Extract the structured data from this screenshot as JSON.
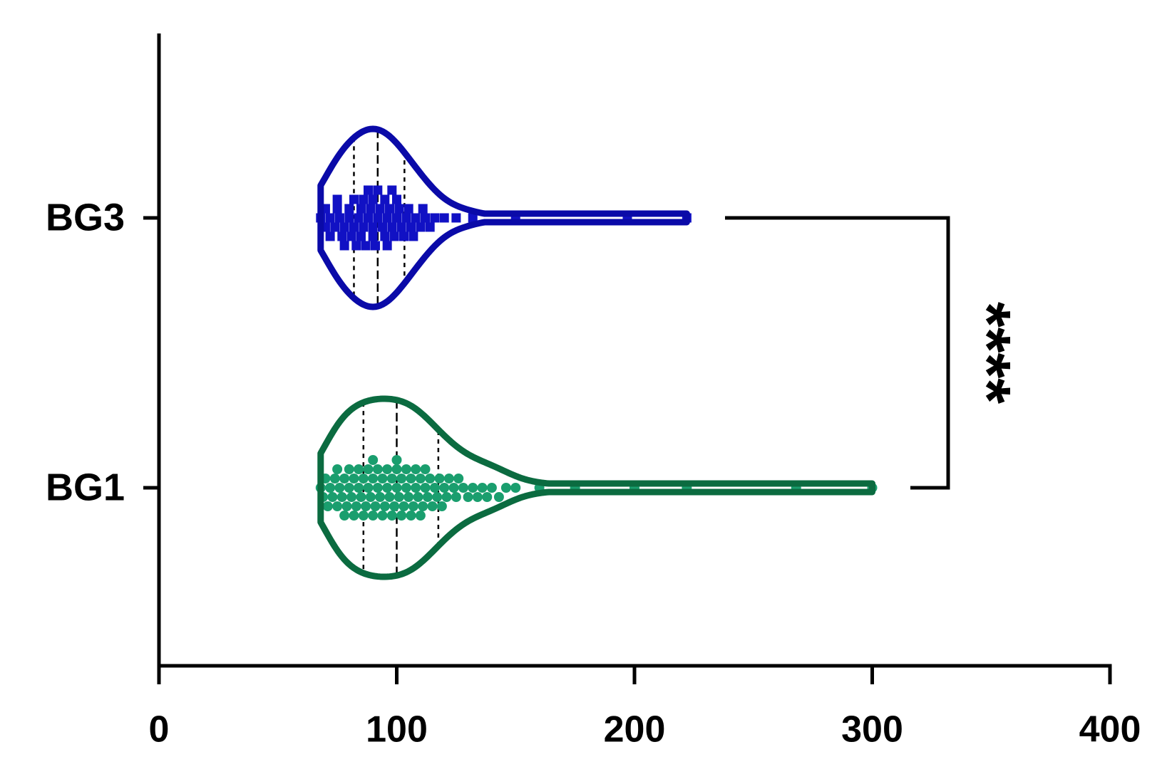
{
  "chart_data": {
    "type": "violin",
    "orientation": "horizontal",
    "xlim": [
      0,
      400
    ],
    "xticks": [
      0,
      100,
      200,
      300,
      400
    ],
    "groups": [
      {
        "label": "BG3",
        "color": "#1111c4",
        "line_color": "#0a0aa8",
        "marker": "square",
        "values": [
          68,
          70,
          70,
          72,
          72,
          74,
          75,
          75,
          76,
          77,
          78,
          78,
          80,
          80,
          81,
          82,
          82,
          83,
          84,
          85,
          85,
          86,
          86,
          87,
          88,
          88,
          89,
          90,
          90,
          90,
          91,
          92,
          92,
          93,
          94,
          95,
          95,
          96,
          96,
          97,
          98,
          98,
          99,
          100,
          100,
          101,
          102,
          103,
          104,
          105,
          106,
          107,
          108,
          110,
          111,
          112,
          114,
          116,
          120,
          125,
          132,
          150,
          197,
          222
        ]
      },
      {
        "label": "BG1",
        "color": "#1a9e6e",
        "line_color": "#0b6b40",
        "marker": "circle",
        "values": [
          68,
          69,
          70,
          71,
          72,
          73,
          74,
          75,
          75,
          76,
          77,
          78,
          78,
          79,
          80,
          80,
          81,
          82,
          82,
          83,
          84,
          84,
          85,
          86,
          86,
          87,
          88,
          88,
          89,
          90,
          90,
          90,
          91,
          92,
          92,
          93,
          94,
          94,
          95,
          96,
          96,
          97,
          98,
          98,
          99,
          100,
          100,
          100,
          101,
          102,
          102,
          103,
          104,
          104,
          105,
          106,
          106,
          107,
          108,
          108,
          109,
          110,
          110,
          111,
          112,
          112,
          113,
          114,
          115,
          116,
          117,
          118,
          119,
          120,
          121,
          122,
          124,
          125,
          126,
          128,
          130,
          132,
          134,
          136,
          138,
          140,
          143,
          146,
          150,
          160,
          175,
          200,
          222,
          268,
          300
        ]
      }
    ],
    "annotation": {
      "text": "****"
    }
  }
}
